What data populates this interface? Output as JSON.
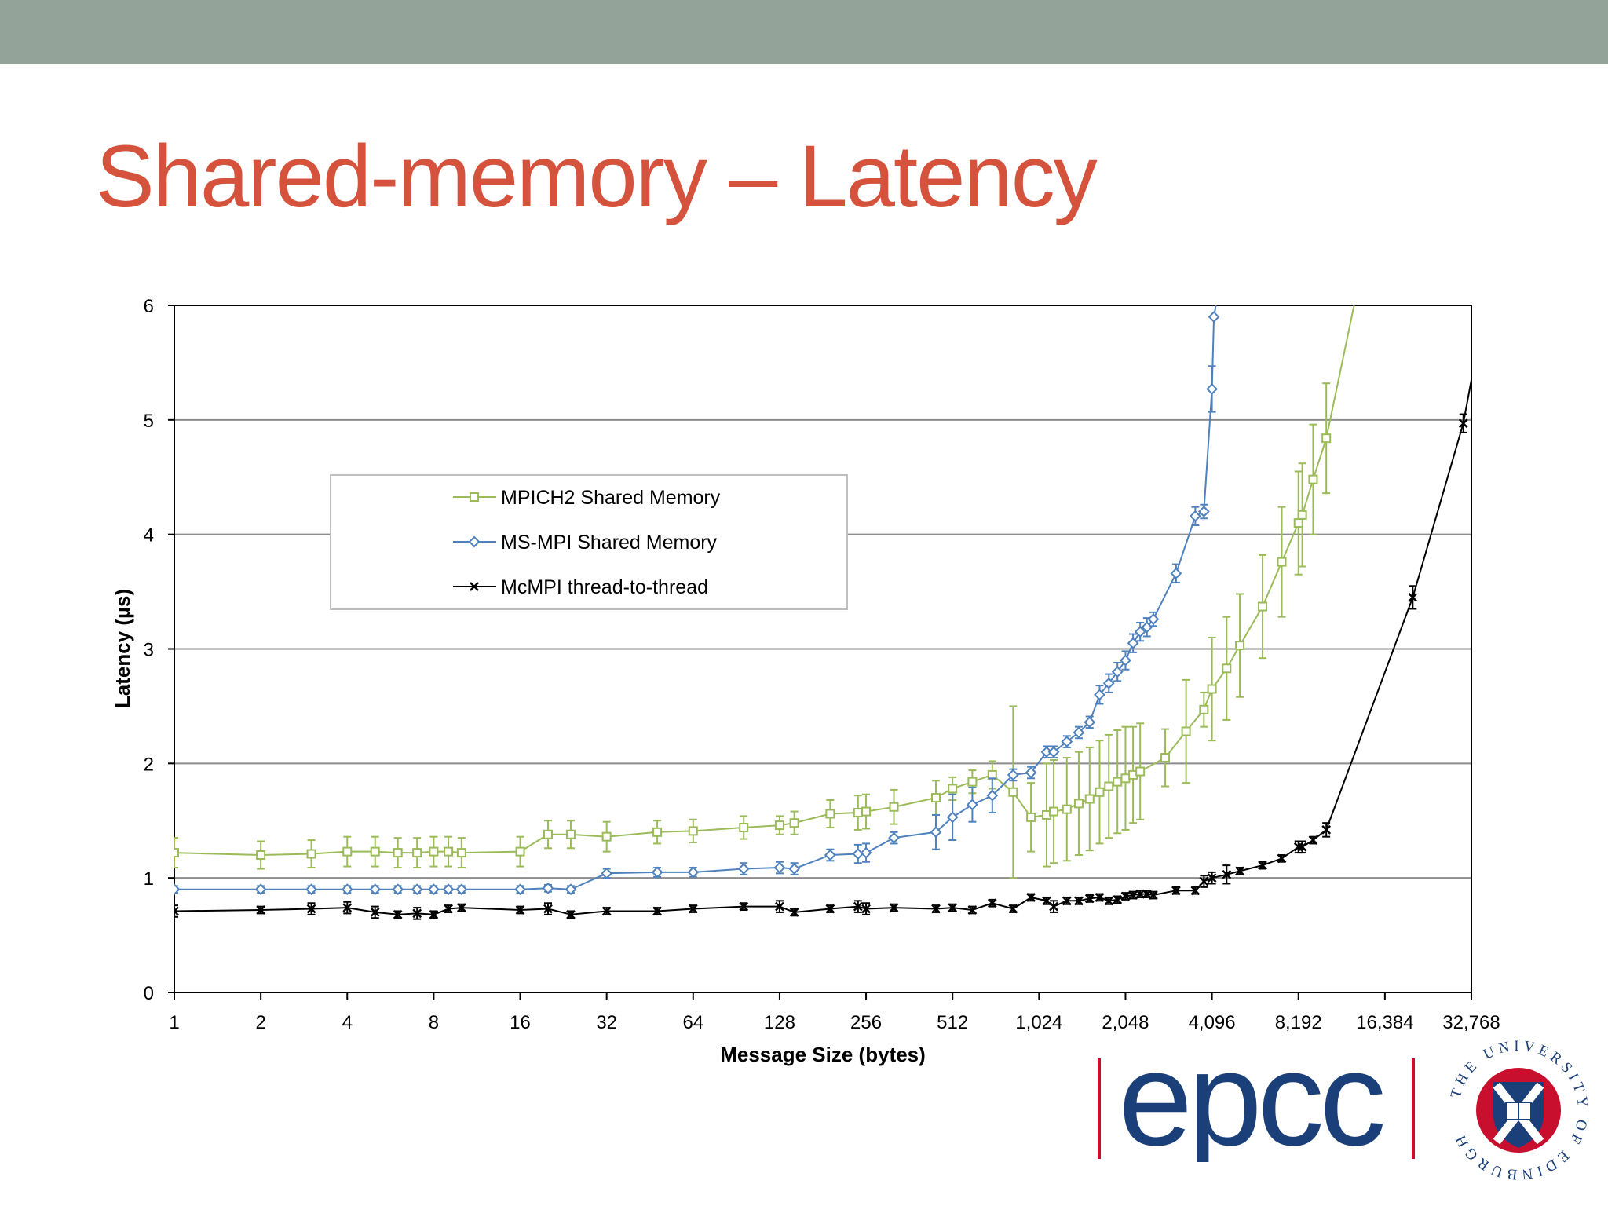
{
  "slide": {
    "title": "Shared-memory – Latency"
  },
  "colors": {
    "top_bar": "#93a39a",
    "title": "#d5533c",
    "mpich2": "#9bbb59",
    "msmpi": "#4f81bd",
    "mcmpi": "#000000",
    "epcc_navy": "#1b3f78",
    "epcc_red": "#c8102e"
  },
  "logos": {
    "epcc": "epcc",
    "uoe_ring": "THE UNIVERSITY OF EDINBURGH"
  },
  "chart_data": {
    "type": "line",
    "title": "",
    "xlabel": "Message Size (bytes)",
    "ylabel": "Latency (µs)",
    "x_scale": "log2",
    "xlim": [
      1,
      32768
    ],
    "ylim": [
      0,
      6
    ],
    "x_ticks": [
      1,
      2,
      4,
      8,
      16,
      32,
      64,
      128,
      256,
      512,
      1024,
      2048,
      4096,
      8192,
      16384,
      32768
    ],
    "x_tick_labels": [
      "1",
      "2",
      "4",
      "8",
      "16",
      "32",
      "64",
      "128",
      "256",
      "512",
      "1,024",
      "2,048",
      "4,096",
      "8,192",
      "16,384",
      "32,768"
    ],
    "y_ticks": [
      0,
      1,
      2,
      3,
      4,
      5,
      6
    ],
    "y_tick_labels": [
      "0",
      "1",
      "2",
      "3",
      "4",
      "5",
      "6"
    ],
    "grid": "horizontal",
    "legend": {
      "position": "upper-left",
      "entries": [
        "MPICH2 Shared Memory",
        "MS-MPI Shared Memory",
        "McMPI thread-to-thread"
      ]
    },
    "series": [
      {
        "name": "MPICH2 Shared Memory",
        "color": "#9bbb59",
        "marker": "square",
        "points": [
          [
            1,
            1.22,
            0.13
          ],
          [
            2,
            1.2,
            0.12
          ],
          [
            3,
            1.21,
            0.12
          ],
          [
            4,
            1.23,
            0.13
          ],
          [
            5,
            1.23,
            0.13
          ],
          [
            6,
            1.22,
            0.13
          ],
          [
            7,
            1.22,
            0.13
          ],
          [
            8,
            1.23,
            0.13
          ],
          [
            9,
            1.23,
            0.13
          ],
          [
            10,
            1.22,
            0.13
          ],
          [
            16,
            1.23,
            0.13
          ],
          [
            20,
            1.38,
            0.12
          ],
          [
            24,
            1.38,
            0.12
          ],
          [
            32,
            1.36,
            0.13
          ],
          [
            48,
            1.4,
            0.1
          ],
          [
            64,
            1.41,
            0.1
          ],
          [
            96,
            1.44,
            0.1
          ],
          [
            128,
            1.46,
            0.08
          ],
          [
            144,
            1.48,
            0.1
          ],
          [
            192,
            1.56,
            0.12
          ],
          [
            240,
            1.57,
            0.15
          ],
          [
            256,
            1.58,
            0.15
          ],
          [
            320,
            1.62,
            0.15
          ],
          [
            448,
            1.7,
            0.15
          ],
          [
            512,
            1.78,
            0.1
          ],
          [
            600,
            1.84,
            0.1
          ],
          [
            704,
            1.9,
            0.12
          ],
          [
            832,
            1.75,
            0.75
          ],
          [
            960,
            1.53,
            0.3
          ],
          [
            1088,
            1.55,
            0.45
          ],
          [
            1152,
            1.58,
            0.45
          ],
          [
            1280,
            1.6,
            0.45
          ],
          [
            1408,
            1.65,
            0.45
          ],
          [
            1536,
            1.69,
            0.45
          ],
          [
            1664,
            1.75,
            0.45
          ],
          [
            1792,
            1.8,
            0.45
          ],
          [
            1920,
            1.84,
            0.45
          ],
          [
            2048,
            1.87,
            0.45
          ],
          [
            2176,
            1.9,
            0.42
          ],
          [
            2304,
            1.93,
            0.42
          ],
          [
            2816,
            2.05,
            0.25
          ],
          [
            3328,
            2.28,
            0.45
          ],
          [
            3840,
            2.47,
            0.15
          ],
          [
            4096,
            2.65,
            0.45
          ],
          [
            4608,
            2.83,
            0.45
          ],
          [
            5120,
            3.03,
            0.45
          ],
          [
            6144,
            3.37,
            0.45
          ],
          [
            7168,
            3.76,
            0.48
          ],
          [
            8192,
            4.1,
            0.45
          ],
          [
            8448,
            4.17,
            0.45
          ],
          [
            9216,
            4.48,
            0.48
          ],
          [
            10240,
            4.84,
            0.48
          ],
          [
            12800,
            6.0,
            0
          ]
        ]
      },
      {
        "name": "MS-MPI Shared Memory",
        "color": "#4f81bd",
        "marker": "diamond",
        "points": [
          [
            1,
            0.9,
            0.03
          ],
          [
            2,
            0.9,
            0.03
          ],
          [
            3,
            0.9,
            0.03
          ],
          [
            4,
            0.9,
            0.03
          ],
          [
            5,
            0.9,
            0.03
          ],
          [
            6,
            0.9,
            0.03
          ],
          [
            7,
            0.9,
            0.03
          ],
          [
            8,
            0.9,
            0.03
          ],
          [
            9,
            0.9,
            0.03
          ],
          [
            10,
            0.9,
            0.03
          ],
          [
            16,
            0.9,
            0.03
          ],
          [
            20,
            0.91,
            0.03
          ],
          [
            24,
            0.9,
            0.03
          ],
          [
            32,
            1.04,
            0.04
          ],
          [
            48,
            1.05,
            0.04
          ],
          [
            64,
            1.05,
            0.04
          ],
          [
            96,
            1.08,
            0.05
          ],
          [
            128,
            1.09,
            0.05
          ],
          [
            144,
            1.08,
            0.05
          ],
          [
            192,
            1.2,
            0.05
          ],
          [
            240,
            1.21,
            0.08
          ],
          [
            256,
            1.22,
            0.08
          ],
          [
            320,
            1.35,
            0.05
          ],
          [
            448,
            1.4,
            0.15
          ],
          [
            512,
            1.53,
            0.2
          ],
          [
            600,
            1.64,
            0.15
          ],
          [
            704,
            1.72,
            0.15
          ],
          [
            832,
            1.9,
            0.05
          ],
          [
            960,
            1.92,
            0.05
          ],
          [
            1088,
            2.1,
            0.05
          ],
          [
            1152,
            2.1,
            0.05
          ],
          [
            1280,
            2.19,
            0.05
          ],
          [
            1408,
            2.27,
            0.05
          ],
          [
            1536,
            2.36,
            0.05
          ],
          [
            1664,
            2.6,
            0.08
          ],
          [
            1792,
            2.7,
            0.08
          ],
          [
            1920,
            2.8,
            0.08
          ],
          [
            2048,
            2.9,
            0.08
          ],
          [
            2176,
            3.05,
            0.08
          ],
          [
            2304,
            3.15,
            0.08
          ],
          [
            2432,
            3.19,
            0.08
          ],
          [
            2560,
            3.26,
            0.06
          ],
          [
            3072,
            3.66,
            0.08
          ],
          [
            3584,
            4.16,
            0.08
          ],
          [
            3840,
            4.2,
            0.06
          ],
          [
            4096,
            5.27,
            0.2
          ],
          [
            4160,
            5.9,
            0
          ],
          [
            4224,
            6.0,
            0
          ]
        ]
      },
      {
        "name": "McMPI thread-to-thread",
        "color": "#000000",
        "marker": "x",
        "points": [
          [
            1,
            0.71,
            0.05
          ],
          [
            2,
            0.72,
            0.03
          ],
          [
            3,
            0.73,
            0.05
          ],
          [
            4,
            0.74,
            0.05
          ],
          [
            5,
            0.7,
            0.05
          ],
          [
            6,
            0.68,
            0.03
          ],
          [
            7,
            0.69,
            0.05
          ],
          [
            8,
            0.68,
            0.03
          ],
          [
            9,
            0.73,
            0.03
          ],
          [
            10,
            0.74,
            0.03
          ],
          [
            16,
            0.72,
            0.03
          ],
          [
            20,
            0.73,
            0.05
          ],
          [
            24,
            0.68,
            0.03
          ],
          [
            32,
            0.71,
            0.03
          ],
          [
            48,
            0.71,
            0.03
          ],
          [
            64,
            0.73,
            0.03
          ],
          [
            96,
            0.75,
            0.03
          ],
          [
            128,
            0.75,
            0.05
          ],
          [
            144,
            0.7,
            0.03
          ],
          [
            192,
            0.73,
            0.03
          ],
          [
            240,
            0.75,
            0.05
          ],
          [
            256,
            0.73,
            0.05
          ],
          [
            320,
            0.74,
            0.03
          ],
          [
            448,
            0.73,
            0.03
          ],
          [
            512,
            0.74,
            0.03
          ],
          [
            600,
            0.72,
            0.03
          ],
          [
            704,
            0.78,
            0.03
          ],
          [
            832,
            0.73,
            0.03
          ],
          [
            960,
            0.83,
            0.03
          ],
          [
            1088,
            0.8,
            0.03
          ],
          [
            1152,
            0.75,
            0.05
          ],
          [
            1280,
            0.8,
            0.03
          ],
          [
            1408,
            0.8,
            0.03
          ],
          [
            1536,
            0.82,
            0.03
          ],
          [
            1664,
            0.83,
            0.03
          ],
          [
            1792,
            0.8,
            0.03
          ],
          [
            1920,
            0.81,
            0.03
          ],
          [
            2048,
            0.84,
            0.03
          ],
          [
            2176,
            0.85,
            0.03
          ],
          [
            2304,
            0.86,
            0.03
          ],
          [
            2432,
            0.86,
            0.03
          ],
          [
            2560,
            0.85,
            0.03
          ],
          [
            3072,
            0.89,
            0.03
          ],
          [
            3584,
            0.89,
            0.03
          ],
          [
            3840,
            0.97,
            0.05
          ],
          [
            4096,
            1.0,
            0.05
          ],
          [
            4608,
            1.03,
            0.08
          ],
          [
            5120,
            1.06,
            0.03
          ],
          [
            6144,
            1.11,
            0.03
          ],
          [
            7168,
            1.17,
            0.03
          ],
          [
            8192,
            1.27,
            0.05
          ],
          [
            8448,
            1.27,
            0.05
          ],
          [
            9216,
            1.33,
            0.03
          ],
          [
            10240,
            1.42,
            0.06
          ],
          [
            20480,
            3.45,
            0.1
          ],
          [
            30720,
            4.97,
            0.08
          ],
          [
            32768,
            5.35,
            0
          ]
        ]
      }
    ]
  }
}
